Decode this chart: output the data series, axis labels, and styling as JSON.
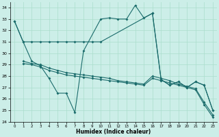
{
  "xlabel": "Humidex (Indice chaleur)",
  "xlim": [
    -0.5,
    23.5
  ],
  "ylim": [
    24,
    34.5
  ],
  "yticks": [
    24,
    25,
    26,
    27,
    28,
    29,
    30,
    31,
    32,
    33,
    34
  ],
  "xticks": [
    0,
    1,
    2,
    3,
    4,
    5,
    6,
    7,
    8,
    9,
    10,
    11,
    12,
    13,
    14,
    15,
    16,
    17,
    18,
    19,
    20,
    21,
    22,
    23
  ],
  "bg_color": "#cceee8",
  "line_color": "#1a6b6b",
  "grid_color": "#aaddcc",
  "line1_x": [
    0,
    1,
    2,
    3,
    4,
    5,
    6,
    7,
    8,
    9,
    10,
    16,
    17,
    18,
    19,
    20,
    21,
    22,
    23
  ],
  "line1_y": [
    32.8,
    31.0,
    31.0,
    31.0,
    31.0,
    31.0,
    31.0,
    31.0,
    31.0,
    31.0,
    31.0,
    33.5,
    27.7,
    27.2,
    27.5,
    27.0,
    27.5,
    27.2,
    25.0
  ],
  "line2_x": [
    0,
    1,
    2,
    3,
    4,
    5,
    6,
    7,
    8,
    10,
    11,
    12,
    13,
    14,
    15,
    16,
    17,
    18,
    19,
    20,
    21,
    22,
    23
  ],
  "line2_y": [
    32.8,
    31.0,
    29.3,
    28.9,
    27.8,
    26.5,
    26.5,
    24.8,
    30.2,
    33.0,
    33.1,
    33.0,
    33.0,
    34.2,
    33.1,
    33.5,
    27.7,
    27.2,
    27.5,
    27.0,
    27.5,
    27.2,
    25.0
  ],
  "line3_x": [
    1,
    2,
    3,
    4,
    5,
    6,
    7,
    8,
    9,
    10,
    11,
    12,
    13,
    14,
    15,
    16,
    17,
    18,
    19,
    20,
    21,
    22,
    23
  ],
  "line3_y": [
    29.1,
    29.0,
    28.8,
    28.5,
    28.3,
    28.1,
    28.0,
    27.9,
    27.8,
    27.7,
    27.6,
    27.5,
    27.4,
    27.3,
    27.2,
    27.8,
    27.6,
    27.4,
    27.2,
    27.0,
    26.8,
    25.5,
    24.4
  ],
  "line4_x": [
    1,
    2,
    3,
    4,
    5,
    6,
    7,
    8,
    9,
    10,
    11,
    12,
    13,
    14,
    15,
    16,
    17,
    18,
    19,
    20,
    21,
    22,
    23
  ],
  "line4_y": [
    29.3,
    29.1,
    29.0,
    28.7,
    28.5,
    28.3,
    28.2,
    28.1,
    28.0,
    27.9,
    27.8,
    27.6,
    27.5,
    27.4,
    27.3,
    28.0,
    27.8,
    27.6,
    27.3,
    27.1,
    26.9,
    25.7,
    24.6
  ]
}
